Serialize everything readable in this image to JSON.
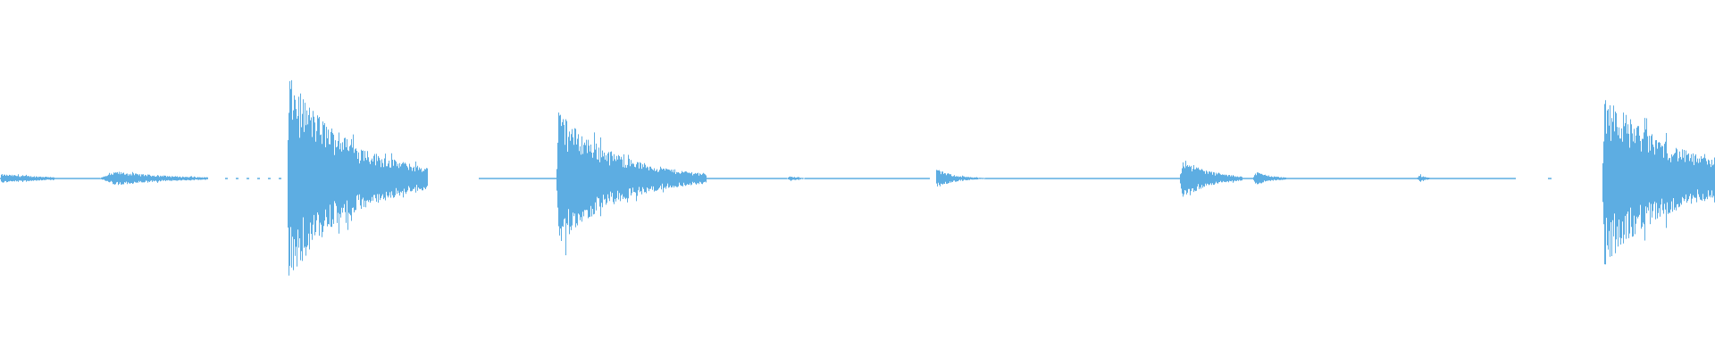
{
  "waveform": {
    "color": "#5DADE2",
    "background": "#FFFFFF",
    "channels": 1
  }
}
